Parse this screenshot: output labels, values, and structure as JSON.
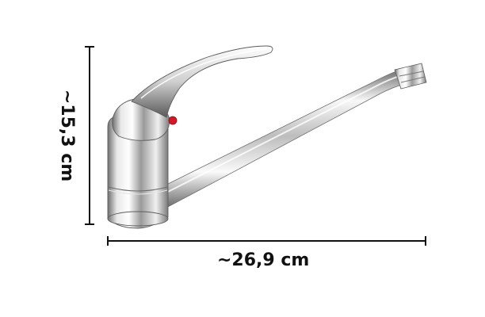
{
  "product": {
    "name_icon": "mixer-tap-photo",
    "colors": {
      "chrome_light": "#f6f6f6",
      "chrome_mid": "#c9c9c9",
      "chrome_dark": "#5a5a5a",
      "hot_indicator": "#d3182a",
      "dimension_line": "#111111"
    }
  },
  "dimensions": {
    "height_label": "~15,3 cm",
    "width_label": "~26,9 cm"
  }
}
